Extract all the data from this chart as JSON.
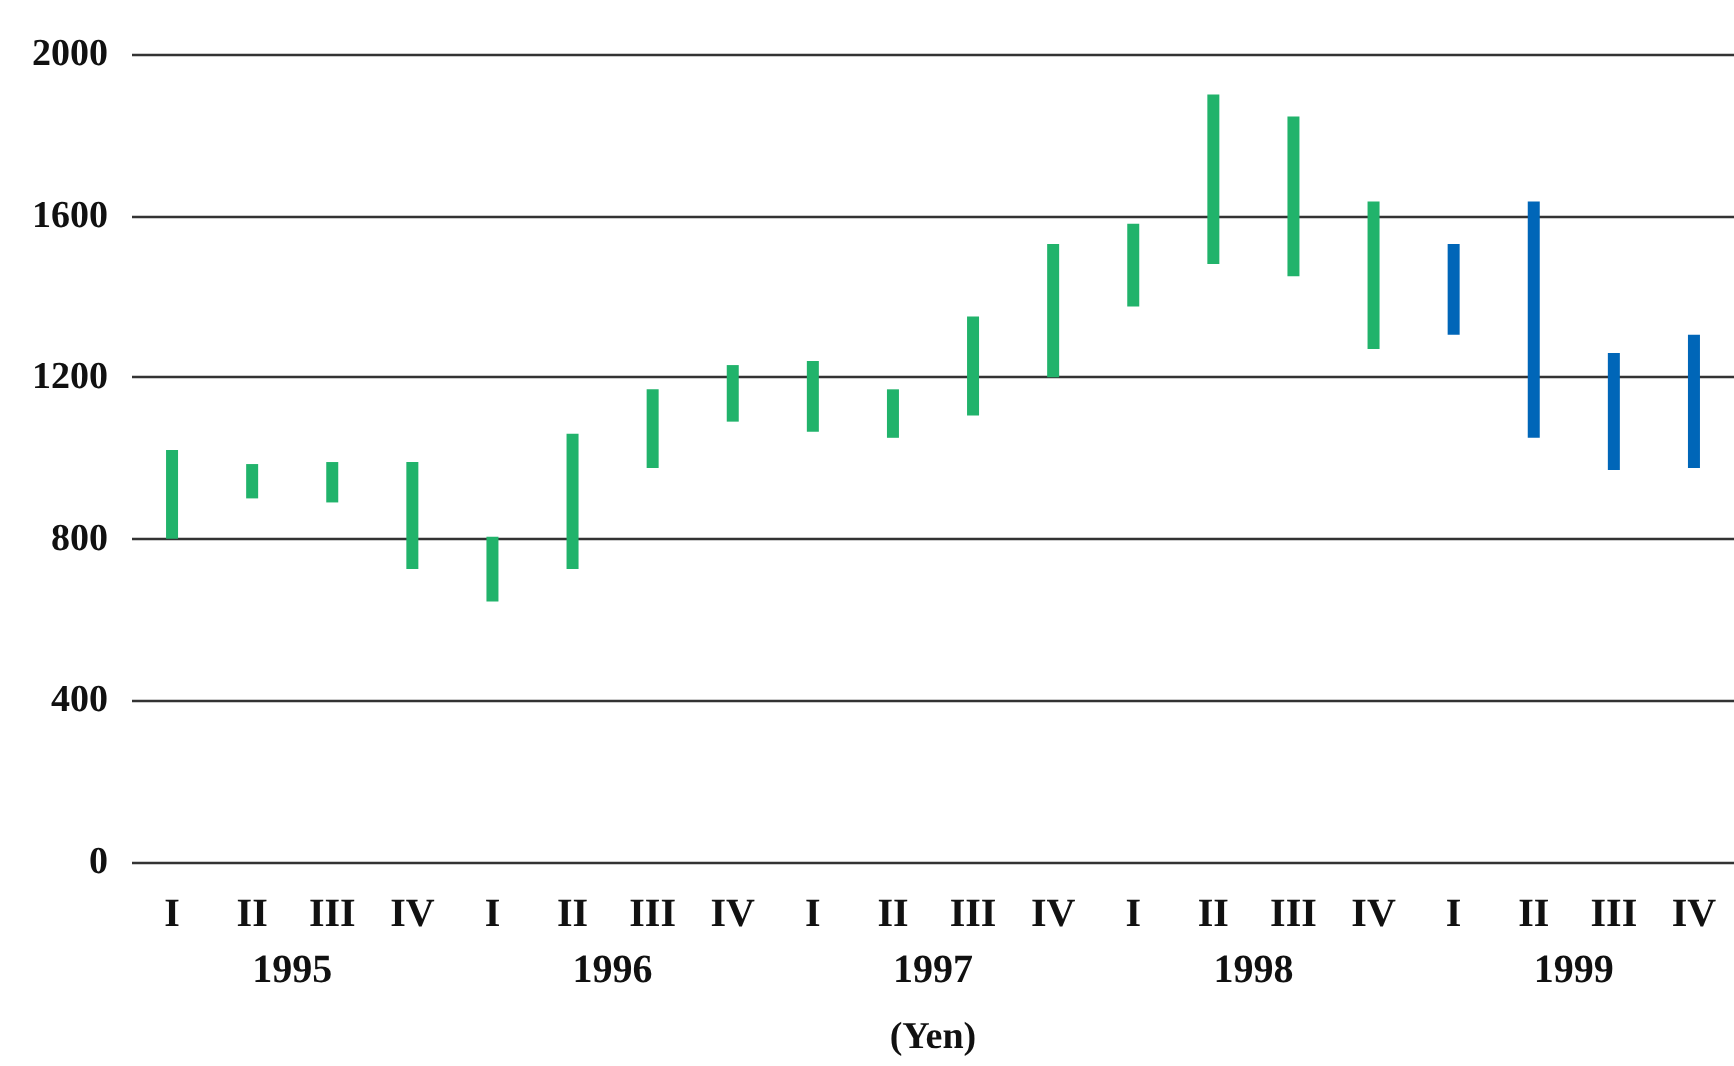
{
  "chart_data": {
    "type": "bar",
    "categories": [
      "I",
      "II",
      "III",
      "IV",
      "I",
      "II",
      "III",
      "IV",
      "I",
      "II",
      "III",
      "IV",
      "I",
      "II",
      "III",
      "IV",
      "I",
      "II",
      "III",
      "IV"
    ],
    "base": [
      800,
      900,
      890,
      725,
      645,
      725,
      975,
      1090,
      1065,
      1050,
      1105,
      1200,
      1375,
      1480,
      1450,
      1270,
      1305,
      1050,
      970,
      975
    ],
    "values": [
      220,
      85,
      100,
      265,
      160,
      335,
      195,
      140,
      175,
      120,
      245,
      330,
      205,
      420,
      395,
      365,
      225,
      585,
      290,
      330
    ],
    "colors": [
      "#21b36b",
      "#21b36b",
      "#21b36b",
      "#21b36b",
      "#21b36b",
      "#21b36b",
      "#21b36b",
      "#21b36b",
      "#21b36b",
      "#21b36b",
      "#21b36b",
      "#21b36b",
      "#21b36b",
      "#21b36b",
      "#21b36b",
      "#21b36b",
      "#0066b8",
      "#0066b8",
      "#0066b8",
      "#0066b8"
    ],
    "xlabel": "(Yen)",
    "annotations": [
      "1995",
      "1996",
      "1997",
      "1998",
      "1999"
    ],
    "ylim": [
      0,
      2000
    ],
    "yticks": [
      0,
      400,
      800,
      1200,
      1600,
      2000
    ],
    "grid": "y"
  }
}
